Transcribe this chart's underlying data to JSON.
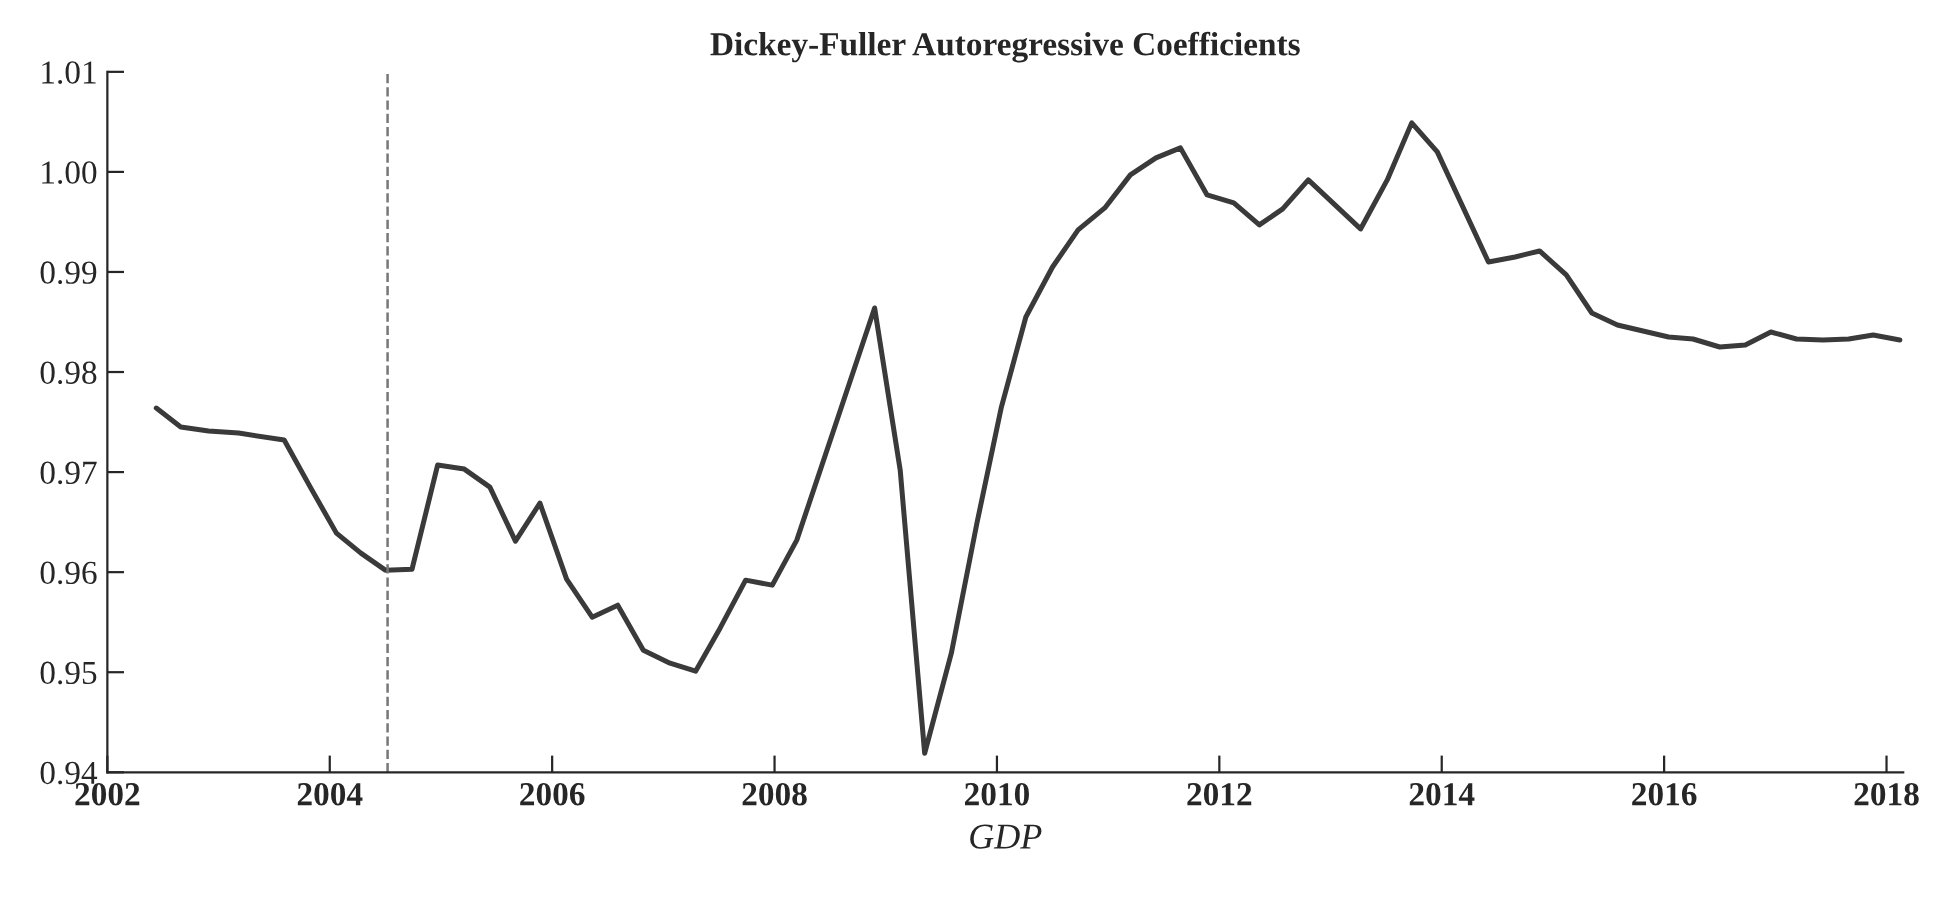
{
  "chart_data": {
    "type": "line",
    "title": "Dickey-Fuller Autoregressive Coefficients",
    "xlabel": "GDP",
    "x": [
      2002.44,
      2002.66,
      2002.91,
      2003.18,
      2003.59,
      2003.83,
      2004.06,
      2004.28,
      2004.5,
      2004.74,
      2004.97,
      2005.21,
      2005.44,
      2005.67,
      2005.89,
      2006.13,
      2006.36,
      2006.59,
      2006.82,
      2007.06,
      2007.29,
      2007.51,
      2007.74,
      2007.98,
      2008.2,
      2008.9,
      2009.13,
      2009.35,
      2009.59,
      2009.82,
      2010.04,
      2010.26,
      2010.5,
      2010.73,
      2010.97,
      2011.2,
      2011.43,
      2011.65,
      2011.89,
      2012.13,
      2012.36,
      2012.57,
      2012.8,
      2013.27,
      2013.51,
      2013.73,
      2013.96,
      2014.42,
      2014.66,
      2014.88,
      2015.12,
      2015.35,
      2015.58,
      2015.81,
      2016.04,
      2016.26,
      2016.5,
      2016.73,
      2016.96,
      2017.19,
      2017.43,
      2017.66,
      2017.88,
      2018.12
    ],
    "series": [
      {
        "color": "#3a3a3a",
        "values": [
          0.9764,
          0.9745,
          0.9741,
          0.9739,
          0.9732,
          0.9684,
          0.9639,
          0.9619,
          0.9602,
          0.9603,
          0.9707,
          0.9703,
          0.9685,
          0.9631,
          0.9669,
          0.9593,
          0.9555,
          0.9567,
          0.9522,
          0.9509,
          0.9501,
          0.9544,
          0.9592,
          0.9587,
          0.9632,
          0.9864,
          0.9702,
          0.9419,
          0.9519,
          0.9649,
          0.9765,
          0.9855,
          0.9905,
          0.9942,
          0.9964,
          0.9997,
          1.0014,
          1.0024,
          0.9977,
          0.9969,
          0.9947,
          0.9963,
          0.9992,
          0.9943,
          0.9992,
          1.0049,
          1.002,
          0.991,
          0.9915,
          0.9921,
          0.9897,
          0.9859,
          0.9847,
          0.9841,
          0.9835,
          0.9833,
          0.9825,
          0.9827,
          0.984,
          0.9833,
          0.9832,
          0.9833,
          0.9837,
          0.9832
        ]
      }
    ],
    "xlim": [
      2002,
      2018.15
    ],
    "xticks": [
      2002,
      2004,
      2006,
      2008,
      2010,
      2012,
      2014,
      2016,
      2018
    ],
    "ylim": [
      0.94,
      1.01
    ],
    "yticks": [
      0.94,
      0.95,
      0.96,
      0.97,
      0.98,
      0.99,
      {
        "value": 1.0,
        "label": "1.00"
      },
      1.01
    ],
    "ref_lines": [
      {
        "axis": "x",
        "value": 2004.52,
        "color": "#777777",
        "line_style": "dashed"
      }
    ],
    "grid": false,
    "legend": false,
    "marker": "none",
    "line_style": "solid"
  }
}
